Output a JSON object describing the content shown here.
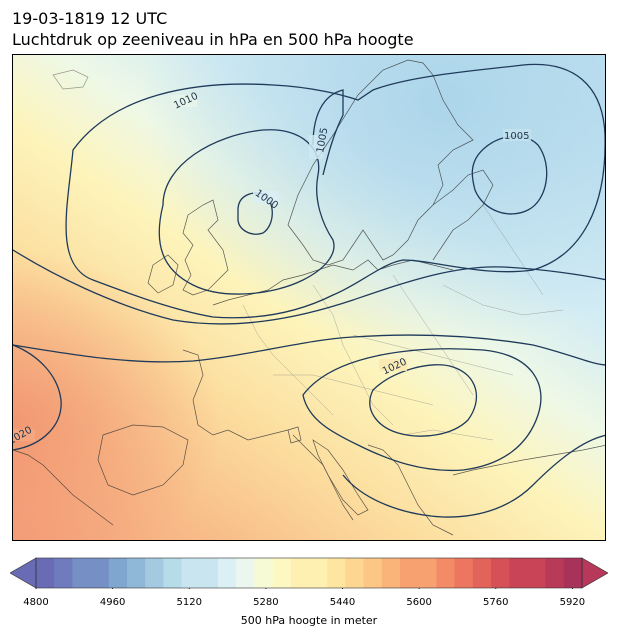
{
  "title": {
    "line1": "19-03-1819 12 UTC",
    "line2": "Luchtdruk op zeeniveau in hPa en 500 hPa hoogte"
  },
  "isobars": {
    "unit": "hPa",
    "labels": [
      "1010",
      "1005",
      "1000",
      "1005",
      "1020",
      "1020"
    ]
  },
  "colorbar": {
    "label": "500 hPa hoogte in meter",
    "ticks": [
      "4800",
      "4960",
      "5120",
      "5280",
      "5440",
      "5600",
      "5760",
      "5920"
    ],
    "min": 4760,
    "max": 5980,
    "step": 40,
    "colormap": "RdYlBu_r",
    "extend": "both"
  },
  "colors": {
    "contour_line": "#1f3a5a",
    "coastline": "#333333",
    "border": "#888888"
  }
}
